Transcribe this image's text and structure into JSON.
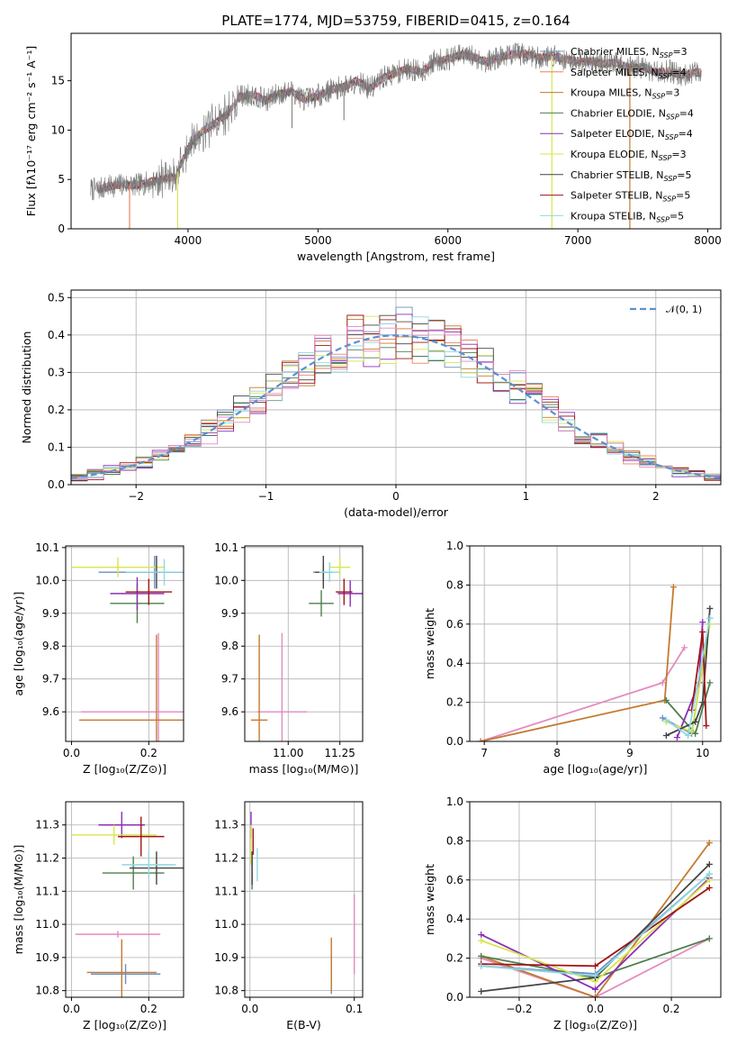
{
  "figure_title": "PLATE=1774, MJD=53759, FIBERID=0415, z=0.164",
  "colors": [
    "#6b8fc4",
    "#e8835f",
    "#c47a2e",
    "#4e7f4e",
    "#8b2fb8",
    "#d8e64a",
    "#444444",
    "#a01515",
    "#8fd8e0",
    "#e38bbf"
  ],
  "legend": [
    {
      "label": "Chabrier MILES, N",
      "sub": "SSP",
      "tail": "=3",
      "color": "#6b8fc4"
    },
    {
      "label": "Salpeter MILES, N",
      "sub": "SSP",
      "tail": "=4",
      "color": "#e8835f"
    },
    {
      "label": "Kroupa MILES, N",
      "sub": "SSP",
      "tail": "=3",
      "color": "#c47a2e"
    },
    {
      "label": "Chabrier ELODIE, N",
      "sub": "SSP",
      "tail": "=4",
      "color": "#4e7f4e"
    },
    {
      "label": "Salpeter ELODIE, N",
      "sub": "SSP",
      "tail": "=4",
      "color": "#8b2fb8"
    },
    {
      "label": "Kroupa ELODIE, N",
      "sub": "SSP",
      "tail": "=3",
      "color": "#d8e64a"
    },
    {
      "label": "Chabrier STELIB, N",
      "sub": "SSP",
      "tail": "=5",
      "color": "#444444"
    },
    {
      "label": "Salpeter STELIB, N",
      "sub": "SSP",
      "tail": "=5",
      "color": "#a01515"
    },
    {
      "label": "Kroupa STELIB, N",
      "sub": "SSP",
      "tail": "=5",
      "color": "#8fd8e0"
    }
  ],
  "chart_data": [
    {
      "id": "spectrum",
      "type": "line",
      "xlabel": "wavelength [Angstrom, rest frame]",
      "ylabel": "Flux [fλ10⁻¹⁷ erg cm⁻² s⁻¹ A⁻¹]",
      "xlim": [
        3100,
        8100
      ],
      "ylim": [
        0,
        19.8
      ],
      "xticks": [
        4000,
        5000,
        6000,
        7000,
        8000
      ],
      "yticks": [
        0,
        5,
        10,
        15
      ],
      "spectrum_x": [
        3300,
        3400,
        3500,
        3600,
        3700,
        3800,
        3900,
        4000,
        4100,
        4200,
        4300,
        4400,
        4500,
        4600,
        4700,
        4800,
        4900,
        5000,
        5100,
        5200,
        5300,
        5400,
        5500,
        5600,
        5700,
        5800,
        5900,
        6000,
        6100,
        6200,
        6300,
        6400,
        6500,
        6600,
        6700,
        6800,
        6900,
        7000,
        7100,
        7200,
        7300,
        7400,
        7500,
        7600,
        7700,
        7800,
        7900
      ],
      "spectrum_y": [
        4.0,
        4.3,
        4.5,
        4.4,
        4.7,
        5.0,
        5.2,
        8.2,
        9.8,
        10.6,
        11.6,
        13.4,
        13.6,
        13.0,
        13.7,
        13.9,
        13.1,
        13.5,
        14.1,
        14.4,
        15.0,
        14.2,
        15.3,
        15.8,
        16.2,
        15.9,
        17.0,
        17.2,
        17.6,
        17.4,
        16.9,
        17.4,
        17.7,
        17.7,
        17.3,
        17.5,
        17.2,
        16.9,
        17.0,
        16.7,
        16.8,
        16.3,
        16.4,
        15.8,
        16.0,
        15.6,
        15.8
      ],
      "dips": [
        [
          3550,
          0,
          "#e8835f"
        ],
        [
          3920,
          0,
          "#d8e64a"
        ],
        [
          6800,
          0,
          "#d8e64a"
        ],
        [
          7400,
          0,
          "#c47a2e"
        ],
        [
          4800,
          10.2,
          "#888888"
        ],
        [
          5200,
          11.0,
          "#888888"
        ]
      ],
      "legend_position": "right"
    },
    {
      "id": "residuals",
      "type": "line",
      "xlabel": "(data-model)/error",
      "ylabel": "Normed distribution",
      "xlim": [
        -2.5,
        2.5
      ],
      "ylim": [
        0,
        0.52
      ],
      "xticks": [
        -2,
        -1,
        0,
        1,
        2
      ],
      "yticks": [
        0,
        0.1,
        0.2,
        0.3,
        0.4,
        0.5
      ],
      "gaussian_label": "𝒩(0, 1)",
      "gaussian_color": "#5b8fd4",
      "bin_width": 0.125,
      "legend_position": "top-right"
    },
    {
      "id": "age_vs_Z",
      "type": "scatter",
      "xlabel": "Z [log₁₀(Z/Z⊙)]",
      "ylabel": "age  [log₁₀(age/yr)]",
      "xlim": [
        -0.015,
        0.29
      ],
      "ylim": [
        9.51,
        10.105
      ],
      "xticks": [
        0.0,
        0.2
      ],
      "yticks": [
        9.6,
        9.7,
        9.8,
        9.9,
        10.0,
        10.1
      ],
      "points": [
        {
          "x": 0.215,
          "y": 10.025,
          "xerr": 0.145,
          "yerr": 0.05,
          "c": "#6b8fc4"
        },
        {
          "x": 0.225,
          "y": 9.6,
          "xerr": 0.2,
          "yerr": 0.24,
          "c": "#e38bbf"
        },
        {
          "x": 0.22,
          "y": 9.575,
          "xerr": 0.2,
          "yerr": 0.26,
          "c": "#c47a2e"
        },
        {
          "x": 0.17,
          "y": 9.93,
          "xerr": 0.07,
          "yerr": 0.06,
          "c": "#4e7f4e"
        },
        {
          "x": 0.17,
          "y": 9.96,
          "xerr": 0.07,
          "yerr": 0.05,
          "c": "#8b2fb8"
        },
        {
          "x": 0.12,
          "y": 10.04,
          "xerr": 0.12,
          "yerr": 0.03,
          "c": "#d8e64a"
        },
        {
          "x": 0.22,
          "y": 10.025,
          "xerr": 0.08,
          "yerr": 0.05,
          "c": "#444444"
        },
        {
          "x": 0.2,
          "y": 9.965,
          "xerr": 0.06,
          "yerr": 0.04,
          "c": "#a01515"
        },
        {
          "x": 0.24,
          "y": 10.025,
          "xerr": 0.1,
          "yerr": 0.04,
          "c": "#8fd8e0"
        }
      ]
    },
    {
      "id": "age_vs_mass",
      "type": "scatter",
      "xlabel": "mass [log₁₀(M/M⊙)]",
      "ylabel": "",
      "xlim": [
        10.79,
        11.36
      ],
      "ylim": [
        9.51,
        10.105
      ],
      "xticks": [
        11.0,
        11.25
      ],
      "yticks": [
        9.6,
        9.7,
        9.8,
        9.9,
        10.0,
        10.1
      ],
      "points": [
        {
          "x": 11.17,
          "y": 10.025,
          "xerr": 0.05,
          "yerr": 0.03,
          "c": "#6b8fc4"
        },
        {
          "x": 10.97,
          "y": 9.6,
          "xerr": 0.12,
          "yerr": 0.24,
          "c": "#e38bbf"
        },
        {
          "x": 10.86,
          "y": 9.575,
          "xerr": 0.04,
          "yerr": 0.26,
          "c": "#c47a2e"
        },
        {
          "x": 11.16,
          "y": 9.93,
          "xerr": 0.06,
          "yerr": 0.04,
          "c": "#4e7f4e"
        },
        {
          "x": 11.3,
          "y": 9.96,
          "xerr": 0.06,
          "yerr": 0.04,
          "c": "#8b2fb8"
        },
        {
          "x": 11.25,
          "y": 10.04,
          "xerr": 0.05,
          "yerr": 0.03,
          "c": "#d8e64a"
        },
        {
          "x": 11.17,
          "y": 10.025,
          "xerr": 0.04,
          "yerr": 0.05,
          "c": "#444444"
        },
        {
          "x": 11.27,
          "y": 9.965,
          "xerr": 0.04,
          "yerr": 0.04,
          "c": "#a01515"
        },
        {
          "x": 11.2,
          "y": 10.025,
          "xerr": 0.05,
          "yerr": 0.03,
          "c": "#8fd8e0"
        }
      ]
    },
    {
      "id": "massweight_vs_age",
      "type": "line",
      "xlabel": "age  [log₁₀(age/yr)]",
      "ylabel": "mass weight",
      "xlim": [
        6.8,
        10.25
      ],
      "ylim": [
        0,
        1.0
      ],
      "xticks": [
        7,
        8,
        9,
        10
      ],
      "yticks": [
        0.0,
        0.2,
        0.4,
        0.6,
        0.8,
        1.0
      ],
      "series": [
        {
          "c": "#e38bbf",
          "x": [
            6.95,
            9.45,
            9.75
          ],
          "y": [
            0.0,
            0.3,
            0.48
          ]
        },
        {
          "c": "#c47a2e",
          "x": [
            6.95,
            9.48,
            9.6
          ],
          "y": [
            0.0,
            0.21,
            0.79
          ]
        },
        {
          "c": "#6b8fc4",
          "x": [
            9.45,
            9.85,
            10.1
          ],
          "y": [
            0.12,
            0.04,
            0.63
          ]
        },
        {
          "c": "#4e7f4e",
          "x": [
            9.5,
            9.9,
            10.1
          ],
          "y": [
            0.21,
            0.04,
            0.3
          ]
        },
        {
          "c": "#8b2fb8",
          "x": [
            9.65,
            9.95,
            10.0
          ],
          "y": [
            0.02,
            0.3,
            0.61
          ]
        },
        {
          "c": "#d8e64a",
          "x": [
            9.5,
            9.85,
            10.1
          ],
          "y": [
            0.1,
            0.05,
            0.6
          ]
        },
        {
          "c": "#444444",
          "x": [
            9.5,
            9.9,
            10.0,
            10.1
          ],
          "y": [
            0.03,
            0.1,
            0.2,
            0.68
          ]
        },
        {
          "c": "#a01515",
          "x": [
            9.85,
            10.0,
            10.05
          ],
          "y": [
            0.16,
            0.56,
            0.08
          ]
        },
        {
          "c": "#8fd8e0",
          "x": [
            9.5,
            9.8,
            10.1
          ],
          "y": [
            0.11,
            0.03,
            0.63
          ]
        }
      ]
    },
    {
      "id": "mass_vs_Z",
      "type": "scatter",
      "xlabel": "Z [log₁₀(Z/Z⊙)]",
      "ylabel": "mass [log₁₀(M/M⊙)]",
      "xlim": [
        -0.015,
        0.29
      ],
      "ylim": [
        10.78,
        11.37
      ],
      "xticks": [
        0.0,
        0.2
      ],
      "yticks": [
        10.8,
        10.9,
        11.0,
        11.1,
        11.2,
        11.3
      ],
      "points": [
        {
          "x": 0.14,
          "y": 10.85,
          "xerr": 0.09,
          "yerr": 0.03,
          "c": "#6b8fc4"
        },
        {
          "x": 0.12,
          "y": 10.97,
          "xerr": 0.11,
          "yerr": 0.01,
          "c": "#e38bbf"
        },
        {
          "x": 0.13,
          "y": 10.855,
          "xerr": 0.09,
          "yerr": 0.1,
          "c": "#c47a2e"
        },
        {
          "x": 0.16,
          "y": 11.155,
          "xerr": 0.08,
          "yerr": 0.05,
          "c": "#4e7f4e"
        },
        {
          "x": 0.13,
          "y": 11.3,
          "xerr": 0.06,
          "yerr": 0.04,
          "c": "#8b2fb8"
        },
        {
          "x": 0.11,
          "y": 11.27,
          "xerr": 0.11,
          "yerr": 0.03,
          "c": "#d8e64a"
        },
        {
          "x": 0.22,
          "y": 11.17,
          "xerr": 0.07,
          "yerr": 0.05,
          "c": "#444444"
        },
        {
          "x": 0.18,
          "y": 11.265,
          "xerr": 0.06,
          "yerr": 0.06,
          "c": "#a01515"
        },
        {
          "x": 0.2,
          "y": 11.18,
          "xerr": 0.07,
          "yerr": 0.04,
          "c": "#8fd8e0"
        }
      ]
    },
    {
      "id": "mass_vs_ebv",
      "type": "scatter",
      "xlabel": "E(B-V)",
      "ylabel": "",
      "xlim": [
        -0.005,
        0.108
      ],
      "ylim": [
        10.78,
        11.37
      ],
      "xticks": [
        0.0,
        0.1
      ],
      "yticks": [
        10.8,
        10.9,
        11.0,
        11.1,
        11.2,
        11.3
      ],
      "points": [
        {
          "x": 0.078,
          "y": 10.85,
          "xerr": 0,
          "yerr": 0.06,
          "c": "#6b8fc4"
        },
        {
          "x": 0.1,
          "y": 10.97,
          "xerr": 0,
          "yerr": 0.12,
          "c": "#e38bbf"
        },
        {
          "x": 0.078,
          "y": 10.88,
          "xerr": 0,
          "yerr": 0.08,
          "c": "#c47a2e"
        },
        {
          "x": 0.002,
          "y": 11.155,
          "xerr": 0,
          "yerr": 0.05,
          "c": "#4e7f4e"
        },
        {
          "x": 0.001,
          "y": 11.3,
          "xerr": 0,
          "yerr": 0.04,
          "c": "#8b2fb8"
        },
        {
          "x": 0.001,
          "y": 11.24,
          "xerr": 0,
          "yerr": 0.06,
          "c": "#d8e64a"
        },
        {
          "x": 0.002,
          "y": 11.17,
          "xerr": 0,
          "yerr": 0.05,
          "c": "#444444"
        },
        {
          "x": 0.003,
          "y": 11.25,
          "xerr": 0,
          "yerr": 0.04,
          "c": "#a01515"
        },
        {
          "x": 0.007,
          "y": 11.18,
          "xerr": 0,
          "yerr": 0.05,
          "c": "#8fd8e0"
        }
      ]
    },
    {
      "id": "massweight_vs_Z",
      "type": "line",
      "xlabel": "Z [log₁₀(Z/Z⊙)]",
      "ylabel": "mass weight",
      "xlim": [
        -0.33,
        0.33
      ],
      "ylim": [
        0,
        1.0
      ],
      "xticks": [
        -0.2,
        0.0,
        0.2
      ],
      "yticks": [
        0.0,
        0.2,
        0.4,
        0.6,
        0.8,
        1.0
      ],
      "series": [
        {
          "c": "#e38bbf",
          "x": [
            -0.3,
            0.0,
            0.3
          ],
          "y": [
            0.2,
            0.0,
            0.3
          ]
        },
        {
          "c": "#c47a2e",
          "x": [
            -0.3,
            0.0,
            0.3
          ],
          "y": [
            0.21,
            0.0,
            0.79
          ]
        },
        {
          "c": "#6b8fc4",
          "x": [
            -0.3,
            0.0,
            0.3
          ],
          "y": [
            0.16,
            0.12,
            0.63
          ]
        },
        {
          "c": "#4e7f4e",
          "x": [
            -0.3,
            0.0,
            0.3
          ],
          "y": [
            0.21,
            0.1,
            0.3
          ]
        },
        {
          "c": "#8b2fb8",
          "x": [
            -0.3,
            0.0,
            0.3
          ],
          "y": [
            0.32,
            0.04,
            0.61
          ]
        },
        {
          "c": "#d8e64a",
          "x": [
            -0.3,
            0.0,
            0.3
          ],
          "y": [
            0.29,
            0.08,
            0.6
          ]
        },
        {
          "c": "#444444",
          "x": [
            -0.3,
            0.0,
            0.3
          ],
          "y": [
            0.03,
            0.1,
            0.68
          ]
        },
        {
          "c": "#a01515",
          "x": [
            -0.3,
            0.0,
            0.3
          ],
          "y": [
            0.17,
            0.16,
            0.56
          ]
        },
        {
          "c": "#8fd8e0",
          "x": [
            -0.3,
            0.0,
            0.3
          ],
          "y": [
            0.16,
            0.11,
            0.63
          ]
        }
      ]
    }
  ]
}
